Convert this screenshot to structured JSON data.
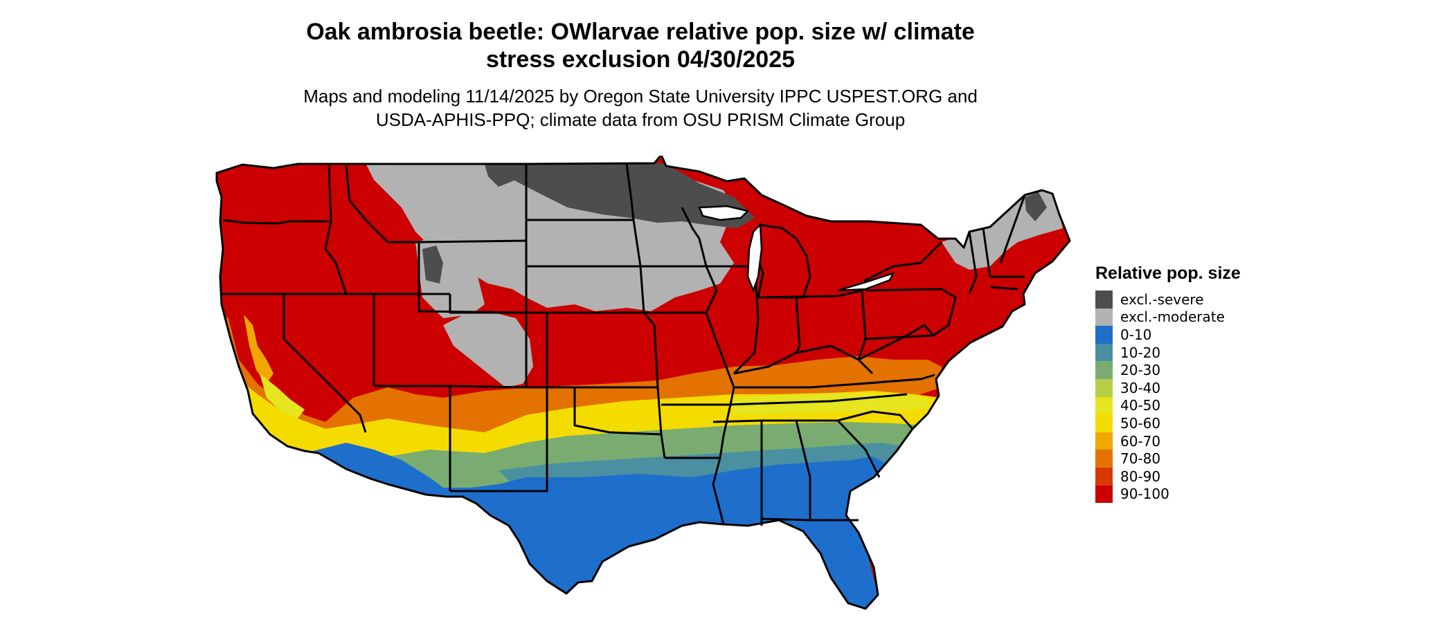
{
  "title_line1": "Oak ambrosia beetle: OWlarvae relative pop. size w/ climate",
  "title_line2": "stress exclusion 04/30/2025",
  "subtitle_line1": "Maps and modeling 11/14/2025 by Oregon State University IPPC USPEST.ORG and",
  "subtitle_line2": "USDA-APHIS-PPQ; climate data from OSU PRISM Climate Group",
  "legend": {
    "title": "Relative pop. size",
    "items": [
      {
        "label": "excl.-severe",
        "color": "#4d4d4d"
      },
      {
        "label": "excl.-moderate",
        "color": "#b2b2b2"
      },
      {
        "label": "0-10",
        "color": "#1e6fcc"
      },
      {
        "label": "10-20",
        "color": "#4a90a0"
      },
      {
        "label": "20-30",
        "color": "#7aac72"
      },
      {
        "label": "30-40",
        "color": "#b5cf46"
      },
      {
        "label": "40-50",
        "color": "#e5e520"
      },
      {
        "label": "50-60",
        "color": "#f5dc00"
      },
      {
        "label": "60-70",
        "color": "#f0a800"
      },
      {
        "label": "70-80",
        "color": "#e37200"
      },
      {
        "label": "80-90",
        "color": "#d93800"
      },
      {
        "label": "90-100",
        "color": "#cc0000"
      }
    ]
  },
  "colors": {
    "severe": "#4d4d4d",
    "moderate": "#b2b2b2",
    "c0_10": "#1e6fcc",
    "c10_20": "#4a90a0",
    "c20_30": "#7aac72",
    "c40_50": "#e5e520",
    "c50_60": "#f5dc00",
    "c60_70": "#f0a800",
    "c70_80": "#e37200",
    "c90_100": "#cc0000"
  }
}
